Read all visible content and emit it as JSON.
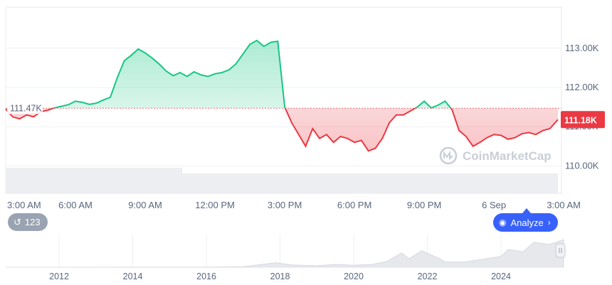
{
  "chart_data": {
    "type": "area",
    "baseline_label": "111.47K",
    "baseline_value": 111470,
    "current_price_label": "111.18K",
    "current_price": 111180,
    "y_ticks": [
      "110.00K",
      "111.00K",
      "112.00K",
      "113.00K"
    ],
    "y_tick_values": [
      110000,
      111000,
      112000,
      113000
    ],
    "ylim": [
      109300,
      114050
    ],
    "x_ticks": [
      "3:00 AM",
      "6:00 AM",
      "9:00 AM",
      "12:00 PM",
      "3:00 PM",
      "6:00 PM",
      "9:00 PM",
      "6 Sep",
      "3:00 AM"
    ],
    "x_tick_hours": [
      0,
      3,
      6,
      9,
      12,
      15,
      18,
      21,
      24
    ],
    "xlim_hours": [
      0,
      23.75
    ],
    "up_color": "#16c784",
    "down_color": "#ea3943",
    "series": [
      {
        "points": [
          [
            0.0,
            111450
          ],
          [
            0.3,
            111250
          ],
          [
            0.6,
            111200
          ],
          [
            0.9,
            111300
          ],
          [
            1.2,
            111250
          ],
          [
            1.5,
            111380
          ],
          [
            1.8,
            111420
          ],
          [
            2.1,
            111480
          ],
          [
            2.4,
            111520
          ],
          [
            2.7,
            111560
          ],
          [
            3.0,
            111650
          ],
          [
            3.3,
            111620
          ],
          [
            3.6,
            111570
          ],
          [
            3.9,
            111600
          ],
          [
            4.2,
            111680
          ],
          [
            4.5,
            111750
          ],
          [
            4.8,
            112250
          ],
          [
            5.1,
            112680
          ],
          [
            5.4,
            112820
          ],
          [
            5.7,
            112980
          ],
          [
            6.0,
            112880
          ],
          [
            6.3,
            112750
          ],
          [
            6.6,
            112600
          ],
          [
            6.9,
            112420
          ],
          [
            7.2,
            112300
          ],
          [
            7.5,
            112380
          ],
          [
            7.8,
            112280
          ],
          [
            8.1,
            112400
          ],
          [
            8.4,
            112320
          ],
          [
            8.7,
            112280
          ],
          [
            9.0,
            112350
          ],
          [
            9.3,
            112380
          ],
          [
            9.6,
            112450
          ],
          [
            9.9,
            112600
          ],
          [
            10.2,
            112850
          ],
          [
            10.5,
            113100
          ],
          [
            10.8,
            113200
          ],
          [
            11.1,
            113050
          ],
          [
            11.4,
            113150
          ],
          [
            11.7,
            113180
          ],
          [
            12.0,
            111500
          ],
          [
            12.3,
            111100
          ],
          [
            12.6,
            110800
          ],
          [
            12.9,
            110500
          ],
          [
            13.2,
            110950
          ],
          [
            13.5,
            110700
          ],
          [
            13.8,
            110800
          ],
          [
            14.1,
            110600
          ],
          [
            14.4,
            110750
          ],
          [
            14.7,
            110700
          ],
          [
            15.0,
            110600
          ],
          [
            15.3,
            110650
          ],
          [
            15.6,
            110380
          ],
          [
            15.9,
            110450
          ],
          [
            16.2,
            110700
          ],
          [
            16.5,
            111100
          ],
          [
            16.8,
            111300
          ],
          [
            17.1,
            111300
          ],
          [
            17.4,
            111400
          ],
          [
            17.7,
            111500
          ],
          [
            18.0,
            111650
          ],
          [
            18.3,
            111480
          ],
          [
            18.6,
            111550
          ],
          [
            18.9,
            111650
          ],
          [
            19.2,
            111430
          ],
          [
            19.5,
            110900
          ],
          [
            19.8,
            110750
          ],
          [
            20.1,
            110500
          ],
          [
            20.4,
            110600
          ],
          [
            20.7,
            110720
          ],
          [
            21.0,
            110800
          ],
          [
            21.3,
            110780
          ],
          [
            21.6,
            110680
          ],
          [
            21.9,
            110720
          ],
          [
            22.2,
            110820
          ],
          [
            22.5,
            110850
          ],
          [
            22.8,
            110800
          ],
          [
            23.1,
            110900
          ],
          [
            23.4,
            110950
          ],
          [
            23.75,
            111180
          ]
        ]
      }
    ],
    "navigator_x_ticks": [
      "2012",
      "2014",
      "2016",
      "2018",
      "2020",
      "2022",
      "2024"
    ],
    "navigator_x_years": [
      2012,
      2014,
      2016,
      2018,
      2020,
      2022,
      2024
    ],
    "navigator_xlim_years": [
      2010.55,
      2025.7
    ],
    "navigator_series": [
      [
        2010.55,
        0
      ],
      [
        2013.0,
        0.002
      ],
      [
        2014.0,
        0.005
      ],
      [
        2016.0,
        0.005
      ],
      [
        2017.0,
        0.02
      ],
      [
        2017.9,
        0.16
      ],
      [
        2018.3,
        0.08
      ],
      [
        2019.0,
        0.05
      ],
      [
        2019.5,
        0.1
      ],
      [
        2020.0,
        0.07
      ],
      [
        2020.5,
        0.1
      ],
      [
        2020.9,
        0.2
      ],
      [
        2021.3,
        0.5
      ],
      [
        2021.5,
        0.3
      ],
      [
        2021.85,
        0.58
      ],
      [
        2022.3,
        0.32
      ],
      [
        2022.5,
        0.18
      ],
      [
        2023.0,
        0.18
      ],
      [
        2023.5,
        0.28
      ],
      [
        2024.0,
        0.38
      ],
      [
        2024.2,
        0.62
      ],
      [
        2024.6,
        0.55
      ],
      [
        2024.9,
        0.88
      ],
      [
        2025.3,
        0.8
      ],
      [
        2025.7,
        0.97
      ]
    ]
  },
  "watermark": "CoinMarketCap",
  "events_chip": {
    "icon": "history-icon",
    "count": "123"
  },
  "analyze_button": {
    "label": "Analyze",
    "icon": "ai-analyze-icon"
  }
}
